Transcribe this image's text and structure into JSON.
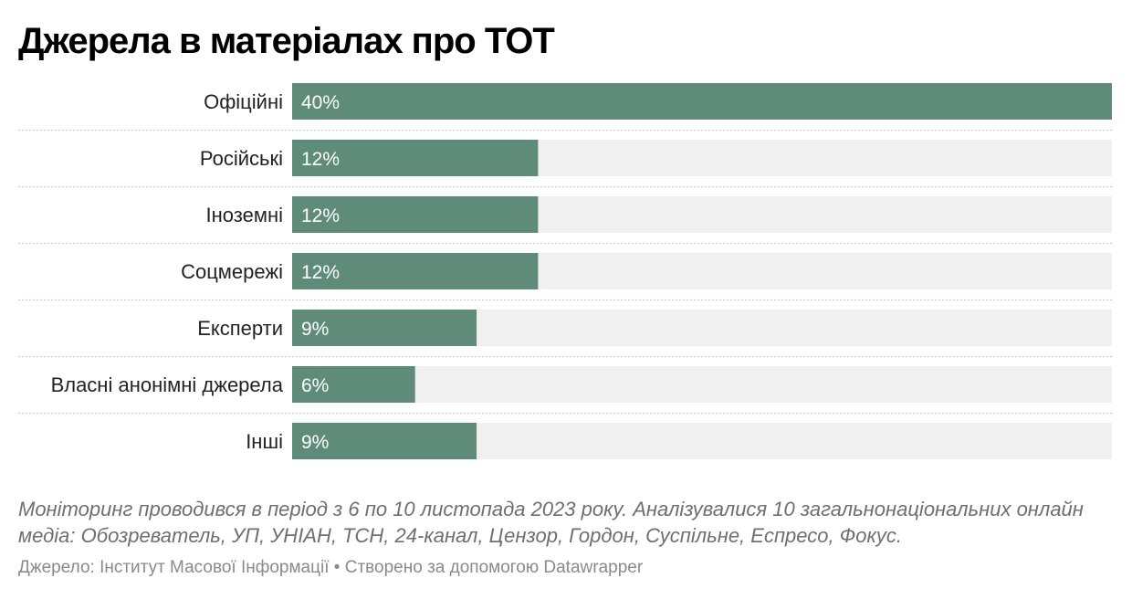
{
  "title": "Джерела в матеріалах про ТОТ",
  "notes": "Моніторинг проводився в період з 6  по 10 листопада 2023 року. Аналізувалися 10 загальнонаціональних онлайн медіа: Обозреватель, УП, УНІАН, ТСН, 24-канал, Цензор, Гордон, Суспільне, Еспресо, Фокус.",
  "footer": {
    "source_label": "Джерело:",
    "source": "Інститут Масової Інформації",
    "separator": "•",
    "credit": "Створено за допомогою Datawrapper"
  },
  "colors": {
    "bar": "#5f8c79",
    "track": "#f0f0f0",
    "divider": "#cccccc"
  },
  "chart_data": {
    "type": "bar",
    "orientation": "horizontal",
    "categories": [
      "Офіційні",
      "Російські",
      "Іноземні",
      "Соцмережі",
      "Експерти",
      "Власні анонімні джерела",
      "Інші"
    ],
    "values": [
      40,
      12,
      12,
      12,
      9,
      6,
      9
    ],
    "value_labels": [
      "40%",
      "12%",
      "12%",
      "12%",
      "9%",
      "6%",
      "9%"
    ],
    "xlim": [
      0,
      40
    ],
    "grid": false
  }
}
